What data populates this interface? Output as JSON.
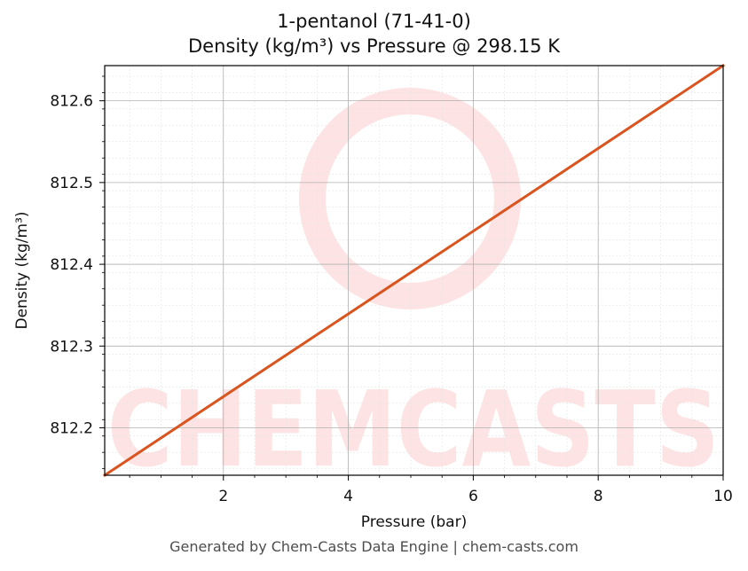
{
  "chart_data": {
    "type": "line",
    "title": "1-pentanol (71-41-0)",
    "subtitle": "Density (kg/m³) vs Pressure @ 298.15 K",
    "xlabel": "Pressure (bar)",
    "ylabel": "Density (kg/m³)",
    "xlim": [
      0.1,
      10
    ],
    "ylim": [
      812.142,
      812.643
    ],
    "x_ticks": [
      2,
      4,
      6,
      8,
      10
    ],
    "y_ticks": [
      812.2,
      812.3,
      812.4,
      812.5,
      812.6
    ],
    "x_tick_labels": [
      "2",
      "4",
      "6",
      "8",
      "10"
    ],
    "y_tick_labels": [
      "812.2",
      "812.3",
      "812.4",
      "812.5",
      "812.6"
    ],
    "grid": true,
    "minor_grid": true,
    "series": [
      {
        "color": "#d9541e",
        "x": [
          0.1,
          10
        ],
        "y": [
          812.142,
          812.643
        ]
      }
    ]
  },
  "watermark": {
    "text": "CHEMCASTS",
    "color": "#fde3e3"
  },
  "footer": "Generated by Chem-Casts Data Engine | chem-casts.com"
}
